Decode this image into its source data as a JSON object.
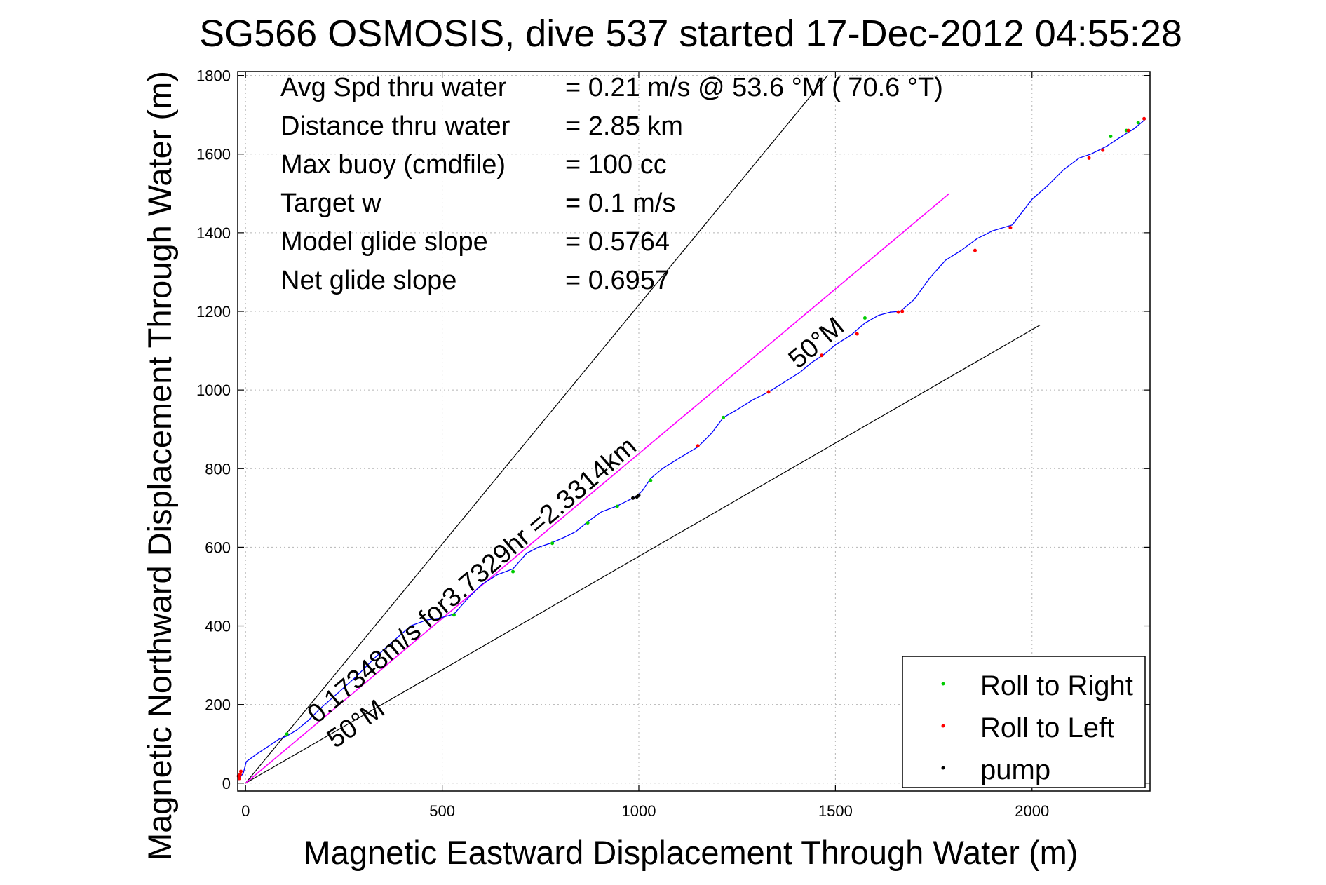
{
  "chart_data": {
    "type": "line",
    "title": "SG566 OSMOSIS, dive 537 started 17-Dec-2012 04:55:28",
    "xlabel": "Magnetic Eastward Displacement Through Water (m)",
    "ylabel": "Magnetic Northward Displacement Through Water (m)",
    "xlim": [
      -20,
      2300
    ],
    "ylim": [
      -20,
      1810
    ],
    "xticks": [
      "0",
      "500",
      "1000",
      "1500",
      "2000"
    ],
    "xtick_values": [
      0,
      500,
      1000,
      1500,
      2000
    ],
    "yticks": [
      "0",
      "200",
      "400",
      "600",
      "800",
      "1000",
      "1200",
      "1400",
      "1600",
      "1800"
    ],
    "ytick_values": [
      0,
      200,
      400,
      600,
      800,
      1000,
      1200,
      1400,
      1600,
      1800
    ],
    "grid": true,
    "stats": [
      {
        "label": "Avg Spd thru water",
        "value": "=  0.21 m/s @  53.6 °M ( 70.6 °T)"
      },
      {
        "label": "Distance thru water",
        "value": "=  2.85 km"
      },
      {
        "label": "Max buoy (cmdfile)",
        "value": "= 100 cc"
      },
      {
        "label": "Target w",
        "value": "= 0.1 m/s"
      },
      {
        "label": "Model glide slope",
        "value": "= 0.5764"
      },
      {
        "label": "Net glide slope",
        "value": "= 0.6957"
      }
    ],
    "annotations": {
      "current": "0.17348m/s for3.7329hr =2.3314km",
      "upper_heading": "50°M",
      "lower_heading": "50°M"
    },
    "reference_lines": [
      {
        "name": "upper",
        "color": "#000000",
        "x": [
          0,
          1480
        ],
        "y": [
          0,
          1800
        ]
      },
      {
        "name": "lower",
        "color": "#000000",
        "x": [
          0,
          2020
        ],
        "y": [
          0,
          1165
        ]
      },
      {
        "name": "current",
        "color": "#ff00ff",
        "x": [
          0,
          1790
        ],
        "y": [
          0,
          1500
        ]
      }
    ],
    "series": [
      {
        "name": "track",
        "color": "#0000ff",
        "x": [
          -18,
          -14,
          -6,
          2,
          30,
          60,
          85,
          105,
          130,
          160,
          190,
          230,
          280,
          330,
          380,
          420,
          460,
          495,
          530,
          565,
          600,
          640,
          680,
          715,
          745,
          775,
          810,
          840,
          870,
          905,
          945,
          975,
          995,
          1010,
          1030,
          1060,
          1100,
          1150,
          1185,
          1215,
          1250,
          1290,
          1330,
          1370,
          1410,
          1440,
          1470,
          1500,
          1540,
          1575,
          1610,
          1640,
          1665,
          1700,
          1740,
          1780,
          1820,
          1860,
          1900,
          1950,
          2000,
          2040,
          2080,
          2120,
          2150,
          2190,
          2220,
          2260,
          2290
        ],
        "y": [
          8,
          15,
          25,
          55,
          75,
          95,
          112,
          120,
          135,
          160,
          190,
          225,
          270,
          320,
          365,
          400,
          415,
          420,
          430,
          470,
          505,
          530,
          545,
          585,
          600,
          610,
          625,
          640,
          665,
          690,
          705,
          720,
          730,
          745,
          775,
          800,
          825,
          855,
          890,
          930,
          950,
          975,
          995,
          1020,
          1045,
          1070,
          1090,
          1115,
          1140,
          1170,
          1190,
          1198,
          1200,
          1230,
          1285,
          1330,
          1355,
          1385,
          1405,
          1420,
          1485,
          1520,
          1560,
          1590,
          1600,
          1620,
          1640,
          1665,
          1690
        ]
      }
    ],
    "markers": {
      "roll_right": {
        "name": "Roll to Right",
        "color": "#00cc00",
        "x": [
          105,
          530,
          680,
          780,
          870,
          945,
          1030,
          1215,
          1575,
          2200,
          2240,
          2270
        ],
        "y": [
          125,
          428,
          538,
          610,
          662,
          704,
          770,
          930,
          1183,
          1645,
          1660,
          1680
        ]
      },
      "roll_left": {
        "name": "Roll to Left",
        "color": "#ff0000",
        "x": [
          -16,
          -14,
          -12,
          -18,
          1150,
          1330,
          1465,
          1555,
          1660,
          1670,
          1855,
          1945,
          2145,
          2180,
          2245,
          2285
        ],
        "y": [
          12,
          22,
          30,
          18,
          858,
          995,
          1088,
          1143,
          1198,
          1200,
          1355,
          1413,
          1590,
          1610,
          1660,
          1690
        ]
      },
      "pump": {
        "name": "pump",
        "color": "#000000",
        "x": [
          985,
          995,
          1000
        ],
        "y": [
          725,
          728,
          732
        ]
      }
    },
    "legend": {
      "position": "bottom-right",
      "entries": [
        {
          "name": "Roll to Right",
          "color": "#00cc00"
        },
        {
          "name": "Roll to Left",
          "color": "#ff0000"
        },
        {
          "name": "pump",
          "color": "#000000"
        }
      ]
    }
  }
}
